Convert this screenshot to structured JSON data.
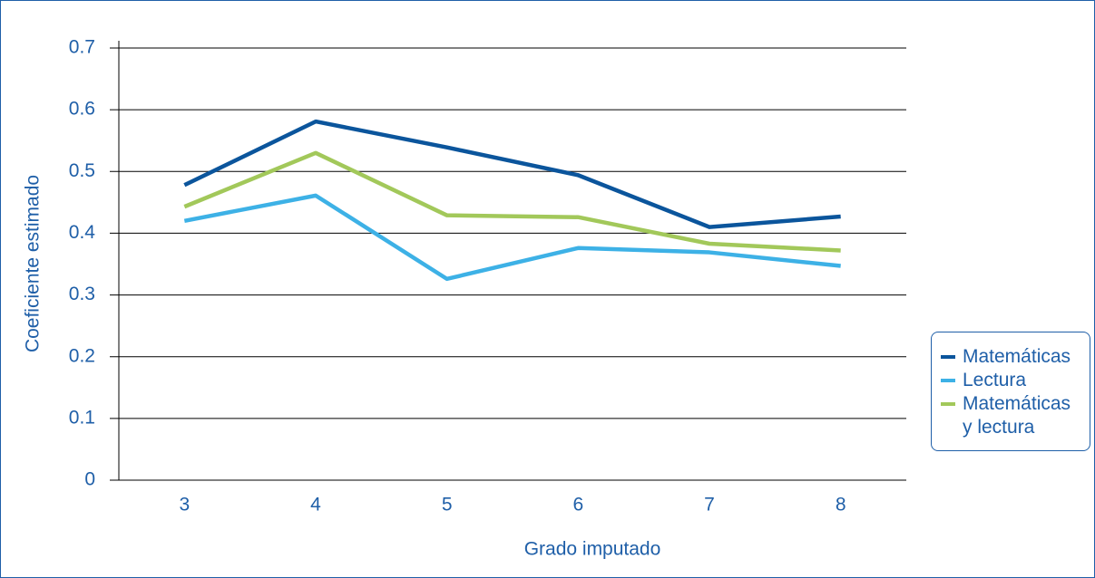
{
  "chart_data": {
    "type": "line",
    "x_label": "Grado imputado",
    "y_label": "Coeficiente estimado",
    "categories": [
      "3",
      "4",
      "5",
      "6",
      "7",
      "8"
    ],
    "series": [
      {
        "name": "Matemáticas",
        "color": "#0b559c",
        "values": [
          0.478,
          0.581,
          0.539,
          0.494,
          0.41,
          0.427
        ]
      },
      {
        "name": "Lectura",
        "color": "#3db1e6",
        "values": [
          0.42,
          0.461,
          0.326,
          0.376,
          0.369,
          0.347
        ]
      },
      {
        "name": "Matemáticas y lectura",
        "color": "#a2c85a",
        "values": [
          0.443,
          0.53,
          0.429,
          0.426,
          0.383,
          0.372
        ]
      }
    ],
    "ylim": [
      0,
      0.7
    ],
    "yticks": [
      0,
      0.1,
      0.2,
      0.3,
      0.4,
      0.5,
      0.6,
      0.7
    ],
    "grid": true,
    "legend": "right"
  }
}
